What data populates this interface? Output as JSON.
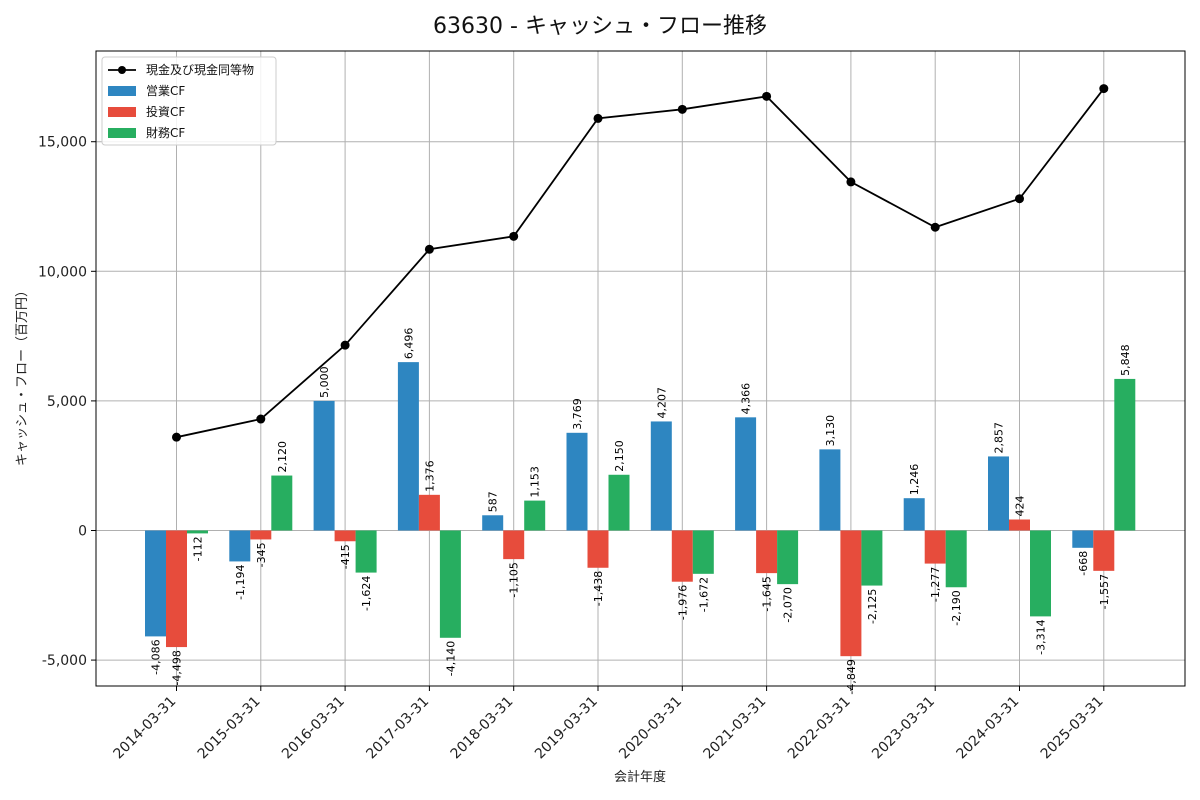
{
  "chart_data": {
    "type": "bar",
    "title": "63630 - キャッシュ・フロー推移",
    "xlabel": "会計年度",
    "ylabel": "キャッシュ・フロー（百万円）",
    "categories": [
      "2014-03-31",
      "2015-03-31",
      "2016-03-31",
      "2017-03-31",
      "2018-03-31",
      "2019-03-31",
      "2020-03-31",
      "2021-03-31",
      "2022-03-31",
      "2023-03-31",
      "2024-03-31",
      "2025-03-31"
    ],
    "ylim": [
      -6000,
      18500
    ],
    "yticks": [
      -5000,
      0,
      5000,
      10000,
      15000
    ],
    "ytick_labels": [
      "-5,000",
      "0",
      "5,000",
      "10,000",
      "15,000"
    ],
    "grid": true,
    "legend_position": "top-left",
    "series": [
      {
        "name": "営業CF",
        "kind": "bar",
        "color": "#2e86c1",
        "values": [
          -4086,
          -1194,
          5000,
          6496,
          587,
          3769,
          4207,
          4366,
          3130,
          1246,
          2857,
          -668
        ],
        "labels": [
          "-4,086",
          "-1,194",
          "5,000",
          "6,496",
          "587",
          "3,769",
          "4,207",
          "4,366",
          "3,130",
          "1,246",
          "2,857",
          "-668"
        ]
      },
      {
        "name": "投資CF",
        "kind": "bar",
        "color": "#e74c3c",
        "values": [
          -4498,
          -345,
          -415,
          1376,
          -1105,
          -1438,
          -1976,
          -1645,
          -4849,
          -1277,
          424,
          -1557
        ],
        "labels": [
          "-4,498",
          "-345",
          "-415",
          "1,376",
          "-1,105",
          "-1,438",
          "-1,976",
          "-1,645",
          "-4,849",
          "-1,277",
          "424",
          "-1,557"
        ]
      },
      {
        "name": "財務CF",
        "kind": "bar",
        "color": "#27ae60",
        "values": [
          -112,
          2120,
          -1624,
          -4140,
          1153,
          2150,
          -1672,
          -2070,
          -2125,
          -2190,
          -3314,
          5848
        ],
        "labels": [
          "-112",
          "2,120",
          "-1,624",
          "-4,140",
          "1,153",
          "2,150",
          "-1,672",
          "-2,070",
          "-2,125",
          "-2,190",
          "-3,314",
          "5,848"
        ]
      },
      {
        "name": "現金及び現金同等物",
        "kind": "line",
        "color": "#000000",
        "values": [
          3600,
          4300,
          7150,
          10850,
          11350,
          15900,
          16250,
          16750,
          13450,
          11700,
          12800,
          17050
        ]
      }
    ]
  }
}
